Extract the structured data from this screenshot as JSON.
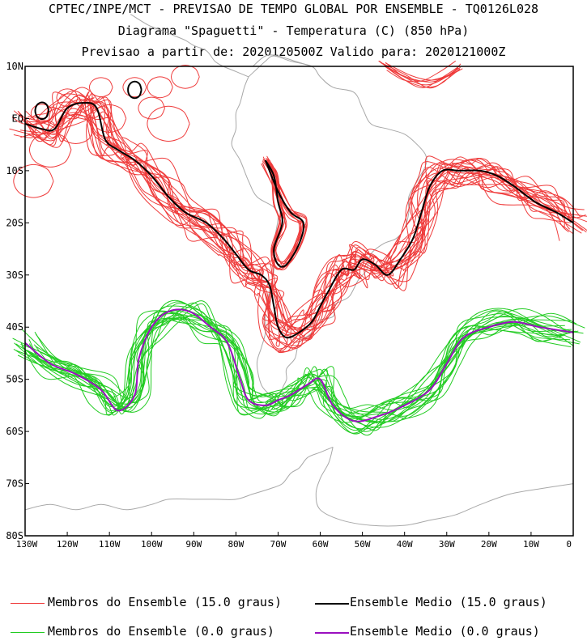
{
  "header": {
    "line1": "CPTEC/INPE/MCT - PREVISAO DE TEMPO GLOBAL POR ENSEMBLE - TQ0126L028",
    "line2": "Diagrama \"Spaguetti\" - Temperatura (C) (850 hPa)",
    "line3": "Previsao a partir de: 2020120500Z  Valido para: 2020121000Z"
  },
  "map": {
    "lon_range": [
      -130,
      0
    ],
    "lat_range": [
      -80,
      10
    ],
    "lat_labels": [
      "10N",
      "EQ",
      "10S",
      "20S",
      "30S",
      "40S",
      "50S",
      "60S",
      "70S",
      "80S"
    ],
    "lon_labels": [
      "130W",
      "120W",
      "110W",
      "100W",
      "90W",
      "80W",
      "70W",
      "60W",
      "50W",
      "40W",
      "30W",
      "20W",
      "10W",
      "0"
    ]
  },
  "colors": {
    "members_15": "#ef3b3b",
    "mean_15": "#000000",
    "members_0": "#22cc22",
    "mean_0": "#9a0fbf",
    "coast": "#a8a8a8"
  },
  "legend": {
    "members_15": "Membros do Ensemble (15.0 graus)",
    "mean_15": "Ensemble Medio (15.0 graus)",
    "members_0": "Membros do Ensemble (0.0 graus)",
    "mean_0": "Ensemble Medio (0.0 graus)"
  },
  "contours": {
    "mean_15": [
      [
        -130,
        -1
      ],
      [
        -126,
        -2
      ],
      [
        -123,
        -2
      ],
      [
        -120,
        2
      ],
      [
        -116,
        3
      ],
      [
        -113,
        2
      ],
      [
        -111,
        -4
      ],
      [
        -108,
        -6
      ],
      [
        -104,
        -8
      ],
      [
        -100,
        -11
      ],
      [
        -96,
        -15
      ],
      [
        -92,
        -18
      ],
      [
        -87,
        -20
      ],
      [
        -83,
        -23
      ],
      [
        -80,
        -26
      ],
      [
        -77,
        -29
      ],
      [
        -74,
        -30
      ],
      [
        -72,
        -32
      ],
      [
        -71,
        -36
      ],
      [
        -70,
        -40
      ],
      [
        -68,
        -42
      ],
      [
        -65,
        -41
      ],
      [
        -62,
        -39
      ],
      [
        -60,
        -36
      ],
      [
        -58,
        -33
      ],
      [
        -55,
        -29
      ],
      [
        -52,
        -29
      ],
      [
        -50,
        -27
      ],
      [
        -47,
        -28
      ],
      [
        -44,
        -30
      ],
      [
        -41,
        -27
      ],
      [
        -38,
        -23
      ],
      [
        -36,
        -18
      ],
      [
        -34,
        -13
      ],
      [
        -31,
        -10
      ],
      [
        -27,
        -10
      ],
      [
        -22,
        -10
      ],
      [
        -18,
        -11
      ],
      [
        -14,
        -13
      ],
      [
        -9,
        -16
      ],
      [
        -4,
        -18
      ],
      [
        0,
        -20
      ]
    ],
    "inner_15": [
      [
        -73,
        -8
      ],
      [
        -71,
        -11
      ],
      [
        -70,
        -16
      ],
      [
        -69,
        -20
      ],
      [
        -71,
        -25
      ],
      [
        -70,
        -28
      ],
      [
        -68,
        -28
      ],
      [
        -65,
        -24
      ],
      [
        -64,
        -20
      ],
      [
        -67,
        -18
      ],
      [
        -70,
        -14
      ],
      [
        -73,
        -8
      ]
    ],
    "mean_0": [
      [
        -130,
        -43
      ],
      [
        -124,
        -47
      ],
      [
        -118,
        -49
      ],
      [
        -112,
        -52
      ],
      [
        -108,
        -56
      ],
      [
        -104,
        -53
      ],
      [
        -103,
        -46
      ],
      [
        -100,
        -40
      ],
      [
        -96,
        -37
      ],
      [
        -91,
        -37
      ],
      [
        -86,
        -40
      ],
      [
        -82,
        -43
      ],
      [
        -79,
        -50
      ],
      [
        -77,
        -54
      ],
      [
        -73,
        -55
      ],
      [
        -70,
        -54
      ],
      [
        -67,
        -53
      ],
      [
        -63,
        -51
      ],
      [
        -60,
        -50
      ],
      [
        -57,
        -55
      ],
      [
        -52,
        -58
      ],
      [
        -46,
        -57
      ],
      [
        -40,
        -55
      ],
      [
        -34,
        -52
      ],
      [
        -30,
        -47
      ],
      [
        -26,
        -42
      ],
      [
        -20,
        -40
      ],
      [
        -14,
        -39
      ],
      [
        -8,
        -40
      ],
      [
        0,
        -41
      ]
    ]
  }
}
